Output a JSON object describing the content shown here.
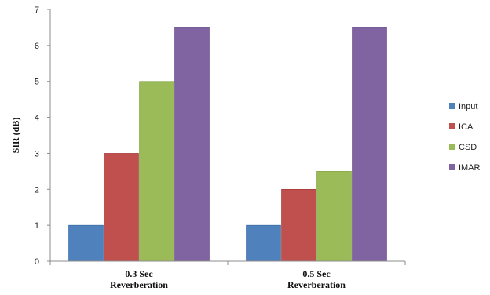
{
  "chart_data": {
    "type": "bar",
    "categories": [
      "0.3 Sec\nReverberation",
      "0.5 Sec\nReverberation"
    ],
    "series": [
      {
        "name": "Input",
        "values": [
          1.0,
          1.0
        ],
        "color": "#4F81BD"
      },
      {
        "name": "ICA",
        "values": [
          3.0,
          2.0
        ],
        "color": "#C0504D"
      },
      {
        "name": "CSD",
        "values": [
          5.0,
          2.5
        ],
        "color": "#9BBB59"
      },
      {
        "name": "IMAR",
        "values": [
          6.5,
          6.5
        ],
        "color": "#8064A2"
      }
    ],
    "title": "",
    "xlabel": "",
    "ylabel": "SIR (dB)",
    "ylim": [
      0,
      7
    ],
    "yticks": [
      0,
      1,
      2,
      3,
      4,
      5,
      6,
      7
    ],
    "grid": false,
    "legend_position": "right"
  }
}
